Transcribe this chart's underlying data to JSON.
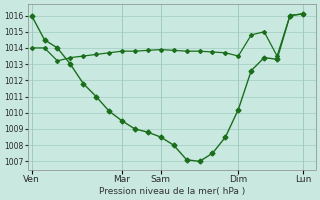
{
  "background_color": "#c8e8e0",
  "grid_color": "#a0ccc0",
  "line_color": "#1a6e1a",
  "xlabel": "Pression niveau de la mer( hPa )",
  "ylim": [
    1006.5,
    1016.7
  ],
  "yticks": [
    1007,
    1008,
    1009,
    1010,
    1011,
    1012,
    1013,
    1014,
    1015,
    1016
  ],
  "xtick_labels": [
    "Ven",
    "Mar",
    "Sam",
    "Dim",
    "Lun"
  ],
  "xtick_positions": [
    0,
    7,
    10,
    16,
    21
  ],
  "xmin": -0.3,
  "xmax": 22.0,
  "line1_x": [
    0,
    1,
    2,
    3,
    4,
    5,
    6,
    7,
    8,
    9,
    10,
    11,
    12,
    13,
    14,
    15,
    16,
    17,
    18,
    19,
    20,
    21
  ],
  "line1_y": [
    1016.0,
    1014.5,
    1014.0,
    1013.0,
    1011.8,
    1011.0,
    1010.1,
    1009.5,
    1009.0,
    1008.8,
    1008.5,
    1008.0,
    1007.1,
    1007.0,
    1007.5,
    1008.5,
    1010.2,
    1012.6,
    1013.4,
    1013.3,
    1016.0,
    1016.1
  ],
  "line2_x": [
    0,
    1,
    2,
    3,
    4,
    5,
    6,
    7,
    8,
    9,
    10,
    11,
    12,
    13,
    14,
    15,
    16,
    17,
    18,
    19,
    20,
    21
  ],
  "line2_y": [
    1014.0,
    1014.0,
    1013.2,
    1013.4,
    1013.5,
    1013.6,
    1013.7,
    1013.8,
    1013.8,
    1013.85,
    1013.9,
    1013.85,
    1013.8,
    1013.8,
    1013.75,
    1013.7,
    1013.5,
    1014.8,
    1015.0,
    1013.5,
    1016.0,
    1016.1
  ]
}
